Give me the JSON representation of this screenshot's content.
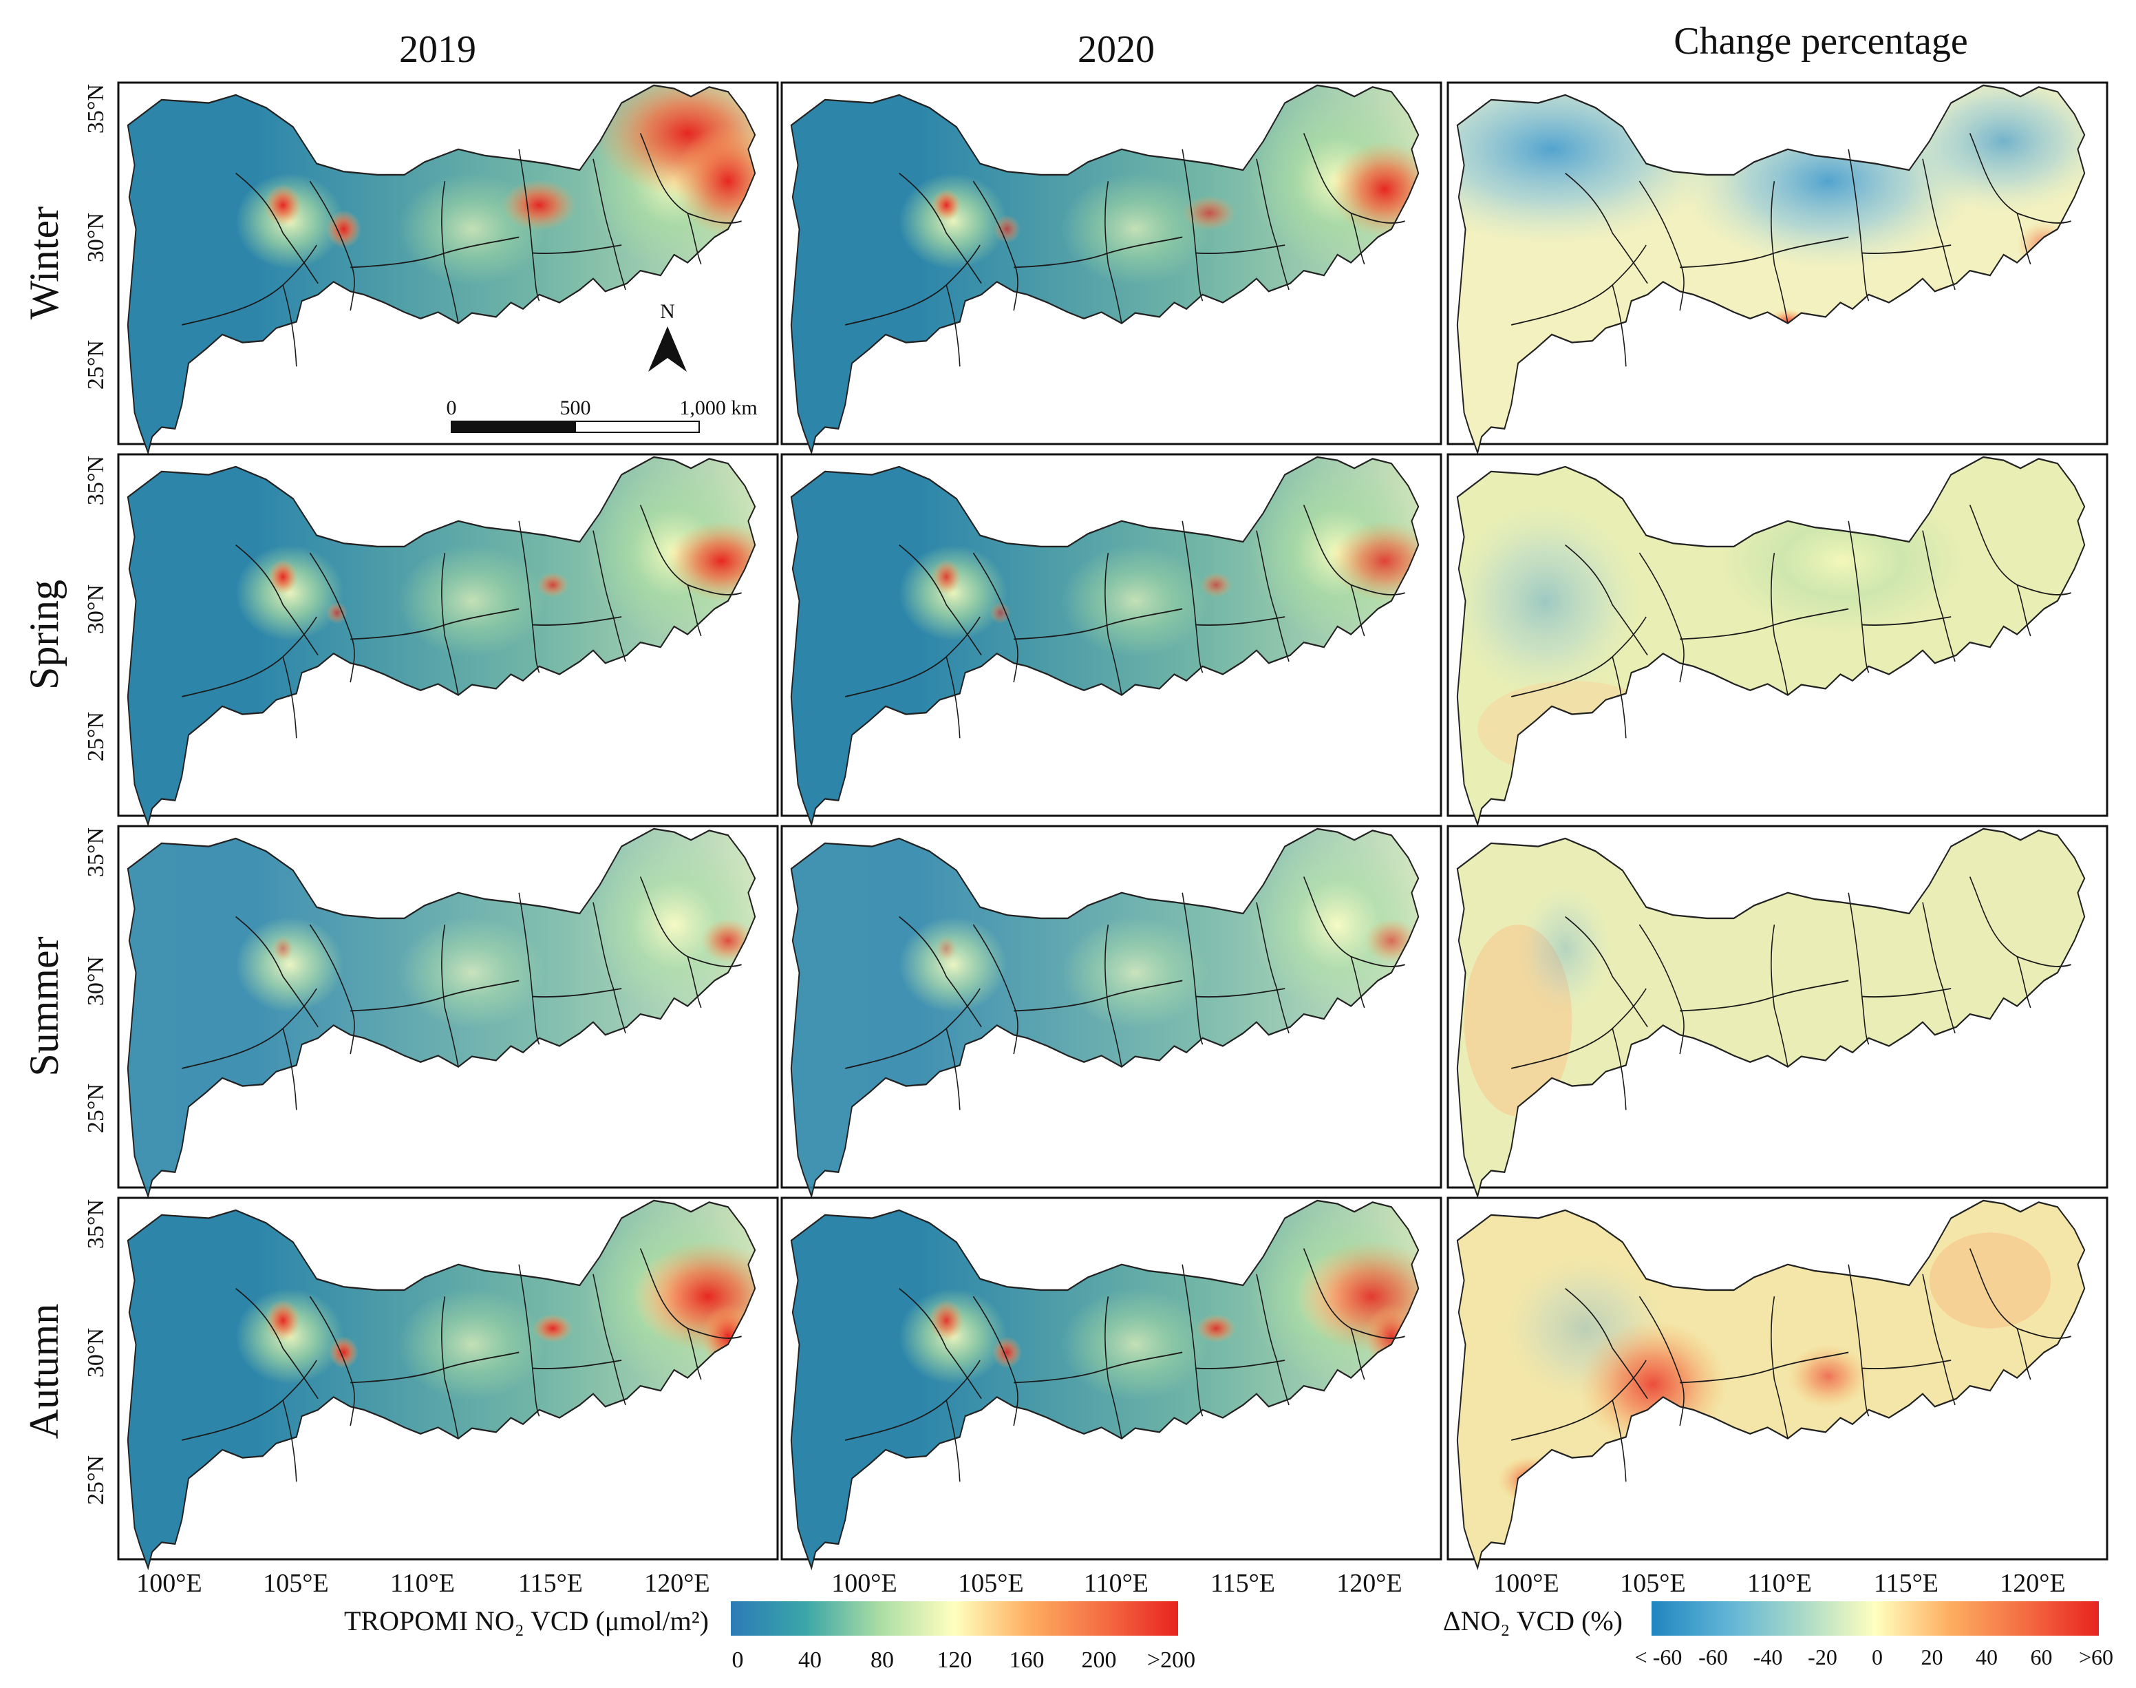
{
  "columns": [
    {
      "key": "y2019",
      "title": "2019"
    },
    {
      "key": "y2020",
      "title": "2020"
    },
    {
      "key": "change",
      "title": "Change percentage"
    }
  ],
  "seasons": [
    "Winter",
    "Spring",
    "Summer",
    "Autumn"
  ],
  "lat_ticks": [
    "35°N",
    "30°N",
    "25°N"
  ],
  "lon_ticks": [
    "100°E",
    "105°E",
    "110°E",
    "115°E",
    "120°E"
  ],
  "north_arrow": "N",
  "scale_bar": {
    "labels": [
      "0",
      "500",
      "1,000 km"
    ]
  },
  "legend_vcd": {
    "label": "TROPOMI NO₂ VCD (μmol/m²)",
    "ticks": [
      "0",
      "40",
      "80",
      "120",
      "160",
      "200",
      ">200"
    ],
    "colors": [
      "#2c7bb6",
      "#3aa6a8",
      "#abdda4",
      "#ffffbf",
      "#fdae61",
      "#f46d43",
      "#e8231f"
    ]
  },
  "legend_change": {
    "label": "ΔNO₂ VCD (%)",
    "ticks": [
      "< -60",
      "-60",
      "-40",
      "-20",
      "0",
      "20",
      "40",
      "60",
      ">60"
    ],
    "colors": [
      "#1f86c0",
      "#5fb3d6",
      "#a7d9c8",
      "#ffffbf",
      "#fdae61",
      "#f46d43",
      "#e8231f"
    ]
  }
}
